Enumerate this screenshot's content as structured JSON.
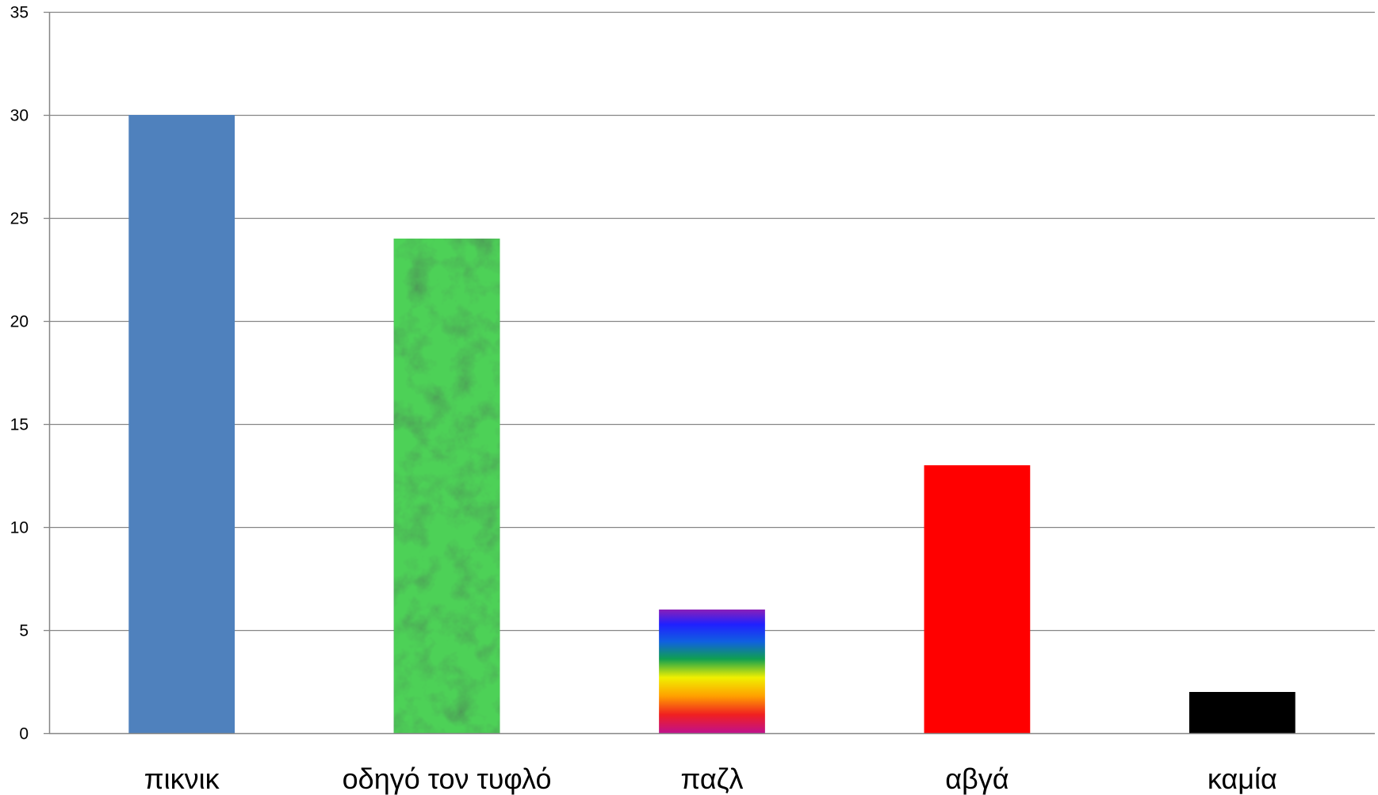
{
  "chart_data": {
    "type": "bar",
    "title": "",
    "xlabel": "",
    "ylabel": "",
    "categories": [
      "πικνικ",
      "οδηγό τον τυφλό",
      "παζλ",
      "αβγά",
      "καμία"
    ],
    "values": [
      30,
      24,
      6,
      13,
      2
    ],
    "ylim": [
      0,
      35
    ],
    "yticks": [
      0,
      5,
      10,
      15,
      20,
      25,
      30,
      35
    ],
    "grid": true,
    "legend": "none",
    "bar_fills": [
      "solid-blue",
      "green-marble-texture",
      "rainbow-gradient",
      "solid-red",
      "solid-black"
    ],
    "colors": {
      "bar_blue": "#4F81BD",
      "bar_green_dark": "#1E4D2B",
      "bar_green_light": "#3E7A4E",
      "bar_red": "#FF0000",
      "bar_black": "#000000",
      "gridline": "#868686",
      "axis": "#868686"
    }
  }
}
